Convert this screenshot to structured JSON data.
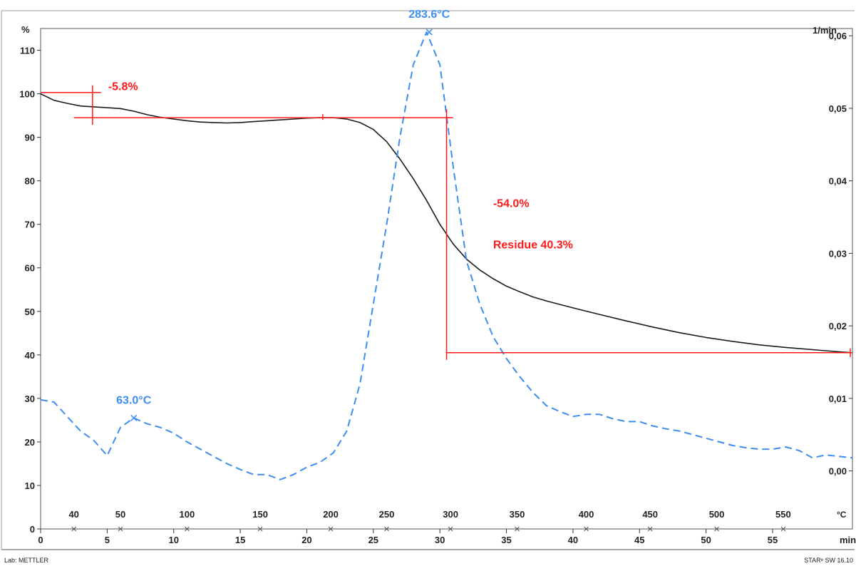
{
  "footer": {
    "lab": "Lab: METTLER",
    "software": "STARᵉ SW 16.10"
  },
  "colors": {
    "tga": "#1a1a1a",
    "dtg": "#3d8ef0",
    "annotation": "#ff1a1a",
    "frame": "#555555"
  },
  "chart_data": {
    "type": "line",
    "title": "",
    "left_axis": {
      "label": "%",
      "ylim": [
        0,
        115
      ],
      "ticks": [
        0,
        10,
        20,
        30,
        40,
        50,
        60,
        70,
        80,
        90,
        100,
        110
      ]
    },
    "right_axis": {
      "label": "1/min",
      "ylim": [
        -0.008,
        0.061
      ],
      "ticks": [
        0.0,
        0.01,
        0.02,
        0.03,
        0.04,
        0.05,
        0.06
      ],
      "tick_labels": [
        "0,00",
        "0,01",
        "0,02",
        "0,03",
        "0,04",
        "0,05",
        "0,06"
      ]
    },
    "x_axis_time": {
      "label": "min",
      "xlim": [
        0,
        61
      ],
      "ticks": [
        0,
        5,
        10,
        15,
        20,
        25,
        30,
        35,
        40,
        45,
        50,
        55
      ]
    },
    "x_axis_temperature": {
      "label": "°C",
      "ticks": [
        40,
        50,
        100,
        150,
        200,
        250,
        300,
        350,
        400,
        450,
        500,
        550
      ],
      "tick_time_minutes": [
        2.5,
        6.0,
        11.0,
        16.5,
        21.8,
        26.0,
        30.8,
        35.8,
        41.0,
        45.8,
        50.8,
        55.8
      ]
    },
    "series": [
      {
        "key": "tga",
        "axis": "left",
        "style": "solid",
        "x": [
          0,
          1,
          2,
          3,
          4,
          5,
          6,
          7,
          8,
          9,
          10,
          11,
          12,
          13,
          14,
          15,
          16,
          17,
          18,
          19,
          20,
          21,
          22,
          23,
          24,
          25,
          26,
          27,
          28,
          29,
          30,
          31,
          32,
          33,
          34,
          35,
          36,
          37,
          38,
          40,
          42,
          44,
          46,
          48,
          50,
          52,
          54,
          56,
          58,
          60,
          61
        ],
        "y": [
          100,
          98.5,
          97.8,
          97.2,
          97,
          96.8,
          96.6,
          96,
          95.2,
          94.6,
          94.2,
          93.8,
          93.5,
          93.4,
          93.3,
          93.4,
          93.6,
          93.8,
          94,
          94.2,
          94.4,
          94.5,
          94.5,
          94.2,
          93.4,
          91.8,
          89,
          85,
          80.5,
          75.5,
          70,
          65.5,
          62,
          59.5,
          57.5,
          55.8,
          54.5,
          53.3,
          52.4,
          50.8,
          49.3,
          47.8,
          46.4,
          45.1,
          44,
          43.1,
          42.3,
          41.7,
          41.2,
          40.7,
          40.5
        ]
      },
      {
        "key": "dtg",
        "axis": "right",
        "style": "dashed",
        "x": [
          0,
          1,
          2,
          3,
          4,
          5,
          6,
          7,
          8,
          9,
          10,
          11,
          12,
          13,
          14,
          15,
          16,
          17,
          18,
          19,
          20,
          21,
          22,
          23,
          24,
          25,
          26,
          27,
          28,
          29,
          30,
          31,
          32,
          33,
          34,
          35,
          36,
          37,
          38,
          39,
          40,
          41,
          42,
          43,
          44,
          45,
          46,
          47,
          48,
          49,
          50,
          51,
          52,
          53,
          54,
          55,
          56,
          57,
          58,
          59,
          60,
          61
        ],
        "y": [
          0.0098,
          0.0095,
          0.0075,
          0.0055,
          0.0042,
          0.0021,
          0.006,
          0.0073,
          0.0065,
          0.006,
          0.0052,
          0.004,
          0.003,
          0.002,
          0.001,
          0.0002,
          -0.0005,
          -0.0005,
          -0.0012,
          -0.0005,
          0.0005,
          0.0012,
          0.0025,
          0.0055,
          0.012,
          0.023,
          0.034,
          0.046,
          0.056,
          0.0605,
          0.056,
          0.042,
          0.029,
          0.023,
          0.0185,
          0.0155,
          0.013,
          0.0108,
          0.009,
          0.0082,
          0.0075,
          0.0078,
          0.0078,
          0.0072,
          0.0068,
          0.0068,
          0.0062,
          0.0058,
          0.0055,
          0.005,
          0.0045,
          0.004,
          0.0035,
          0.0032,
          0.003,
          0.003,
          0.0033,
          0.0028,
          0.0018,
          0.0022,
          0.002,
          0.0018
        ]
      }
    ],
    "peak_labels": [
      {
        "text": "283.6°C",
        "x": 29.2,
        "y": 0.0605,
        "axis": "right"
      },
      {
        "text": "63.0°C",
        "x": 7.0,
        "y": 0.0073,
        "axis": "right"
      }
    ],
    "step_annotations": [
      {
        "text": "-5.8%",
        "x_start": 0,
        "x_end": 3.9,
        "from": 100.3,
        "to": 94.5,
        "marker_x": 3.9
      },
      {
        "text": "-54.0%",
        "x_start": 2.5,
        "x_end": 31,
        "from": 94.5,
        "to": 40.5,
        "marker_x": 30.5
      },
      {
        "text": "Residue 40.3%",
        "x_start": 30.5,
        "x_end": 61,
        "level": 40.5
      }
    ]
  }
}
